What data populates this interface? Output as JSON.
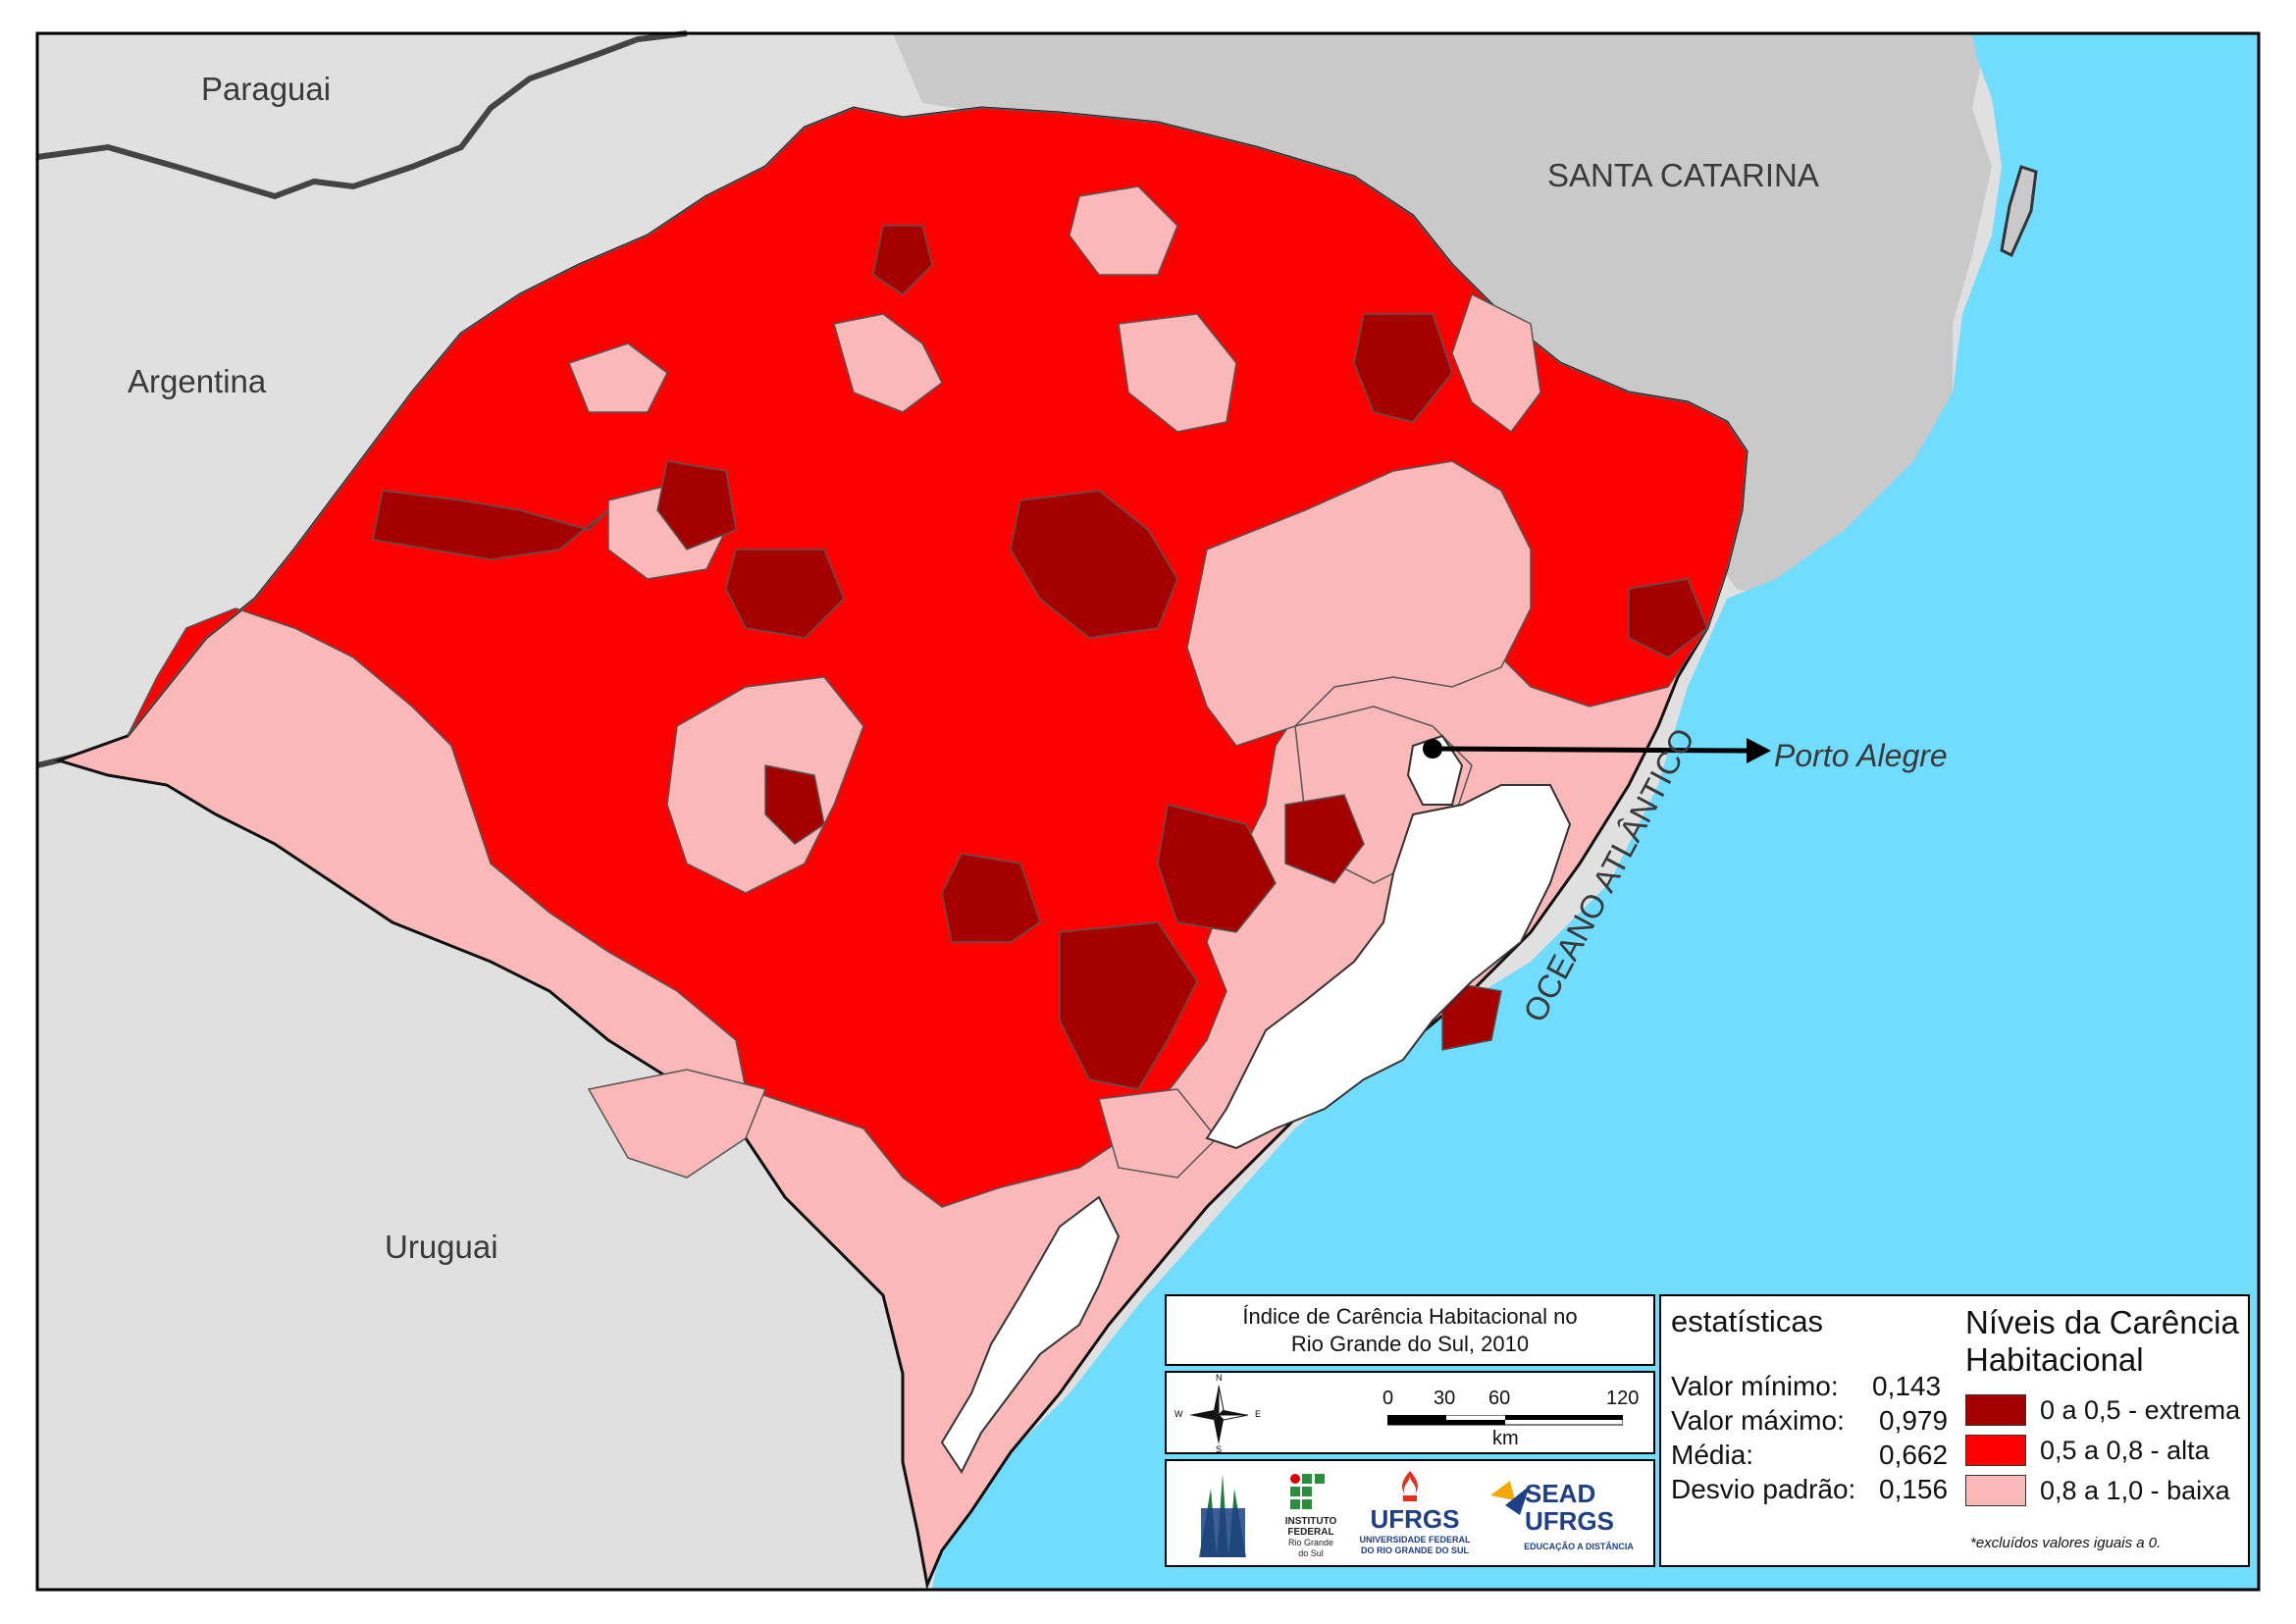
{
  "map": {
    "countries": {
      "paraguai": "Paraguai",
      "argentina": "Argentina",
      "uruguai": "Uruguai"
    },
    "state_label": "SANTA CATARINA",
    "ocean_label": "OCEANO ATLÂNTICO",
    "city_label": "Porto Alegre"
  },
  "title_box": {
    "line1": "Índice de Carência Habitacional no",
    "line2": "Rio Grande do Sul, 2010"
  },
  "scale": {
    "ticks": [
      "0",
      "30",
      "60",
      "120"
    ],
    "unit": "km"
  },
  "compass": {
    "n": "N",
    "s": "S",
    "e": "E",
    "w": "W"
  },
  "stats": {
    "title": "estatísticas",
    "rows": [
      {
        "label": "Valor mínimo:",
        "value": "0,143"
      },
      {
        "label": "Valor máximo:",
        "value": "0,979"
      },
      {
        "label": "Média:",
        "value": "0,662"
      },
      {
        "label": "Desvio padrão:",
        "value": "0,156"
      }
    ]
  },
  "legend": {
    "title_line1": "Níveis da Carência",
    "title_line2": "Habitacional",
    "items": [
      {
        "label": "0 a 0,5 - extrema",
        "color": "#a50000"
      },
      {
        "label": "0,5 a 0,8 - alta",
        "color": "#ff0000"
      },
      {
        "label": "0,8 a 1,0 - baixa",
        "color": "#fbb8b8"
      }
    ],
    "note": "*excluídos valores iguais a 0."
  },
  "logos": {
    "ifrs_line1": "INSTITUTO",
    "ifrs_line2": "FEDERAL",
    "ifrs_line3": "Rio Grande",
    "ifrs_line4": "do Sul",
    "ufrgs": "UFRGS",
    "ufrgs_sub1": "UNIVERSIDADE FEDERAL",
    "ufrgs_sub2": "DO RIO GRANDE DO SUL",
    "sead_line1": "SEAD",
    "sead_line2": "UFRGS",
    "sead_sub": "EDUCAÇÃO A DISTÂNCIA"
  },
  "colors": {
    "ocean": "#70dcff",
    "neighbor": "#e0e0e0",
    "neighbor_dark": "#c9c9c9",
    "extreme": "#a50000",
    "high": "#ff0000",
    "low": "#fbb8b8"
  }
}
